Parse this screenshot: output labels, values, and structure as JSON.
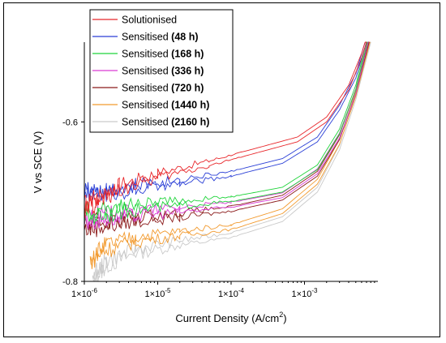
{
  "chart_data": {
    "type": "line",
    "xlabel": "Current Density (A/cm",
    "xlabel_sup": "2",
    "xlabel_end": ")",
    "ylabel": "V vs SCE (V)",
    "x_scale": "log",
    "xlim": [
      1e-06,
      0.01
    ],
    "ylim": [
      -0.8,
      -0.5
    ],
    "x_ticks": [
      {
        "value": 1e-06,
        "label": "1×10",
        "exp": "-6"
      },
      {
        "value": 1e-05,
        "label": "1×10",
        "exp": "-5"
      },
      {
        "value": 0.0001,
        "label": "1×10",
        "exp": "-4"
      },
      {
        "value": 0.001,
        "label": "1×10",
        "exp": "-3"
      }
    ],
    "y_ticks": [
      {
        "value": -0.6,
        "label": "-0.6"
      },
      {
        "value": -0.8,
        "label": "-0.8"
      }
    ],
    "grid": false,
    "legend_position": "top-left",
    "series": [
      {
        "name": "Solutionised",
        "bold": "",
        "color": "#e8262a",
        "x": [
          1e-06,
          1.5e-06,
          3e-06,
          1e-05,
          5e-05,
          0.0002,
          0.0008,
          0.002,
          0.004,
          0.006,
          0.007
        ],
        "y": [
          -0.71,
          -0.7,
          -0.685,
          -0.67,
          -0.655,
          -0.64,
          -0.625,
          -0.6,
          -0.56,
          -0.52,
          -0.5
        ]
      },
      {
        "name": "Sensitised ",
        "bold": "(48 h)",
        "color": "#2a3fd6",
        "x": [
          1e-06,
          2e-06,
          5e-06,
          2e-05,
          0.0001,
          0.0005,
          0.0015,
          0.003,
          0.005,
          0.007
        ],
        "y": [
          -0.69,
          -0.69,
          -0.685,
          -0.678,
          -0.668,
          -0.652,
          -0.625,
          -0.585,
          -0.545,
          -0.5
        ]
      },
      {
        "name": "Sensitised ",
        "bold": "(168 h)",
        "color": "#1fd43a",
        "x": [
          1e-06,
          2e-06,
          5e-06,
          2e-05,
          0.0001,
          0.0005,
          0.0015,
          0.003,
          0.005,
          0.0072
        ],
        "y": [
          -0.72,
          -0.715,
          -0.71,
          -0.705,
          -0.7,
          -0.688,
          -0.66,
          -0.615,
          -0.56,
          -0.5
        ]
      },
      {
        "name": "Sensitised ",
        "bold": "(336 h)",
        "color": "#d93ad4",
        "x": [
          1e-06,
          2e-06,
          5e-06,
          2e-05,
          0.0001,
          0.0005,
          0.0015,
          0.003,
          0.005,
          0.0074
        ],
        "y": [
          -0.725,
          -0.722,
          -0.718,
          -0.713,
          -0.707,
          -0.695,
          -0.665,
          -0.62,
          -0.565,
          -0.5
        ]
      },
      {
        "name": "Sensitised ",
        "bold": "(720 h)",
        "color": "#8b1a1a",
        "x": [
          1e-06,
          2e-06,
          5e-06,
          2e-05,
          0.0001,
          0.0005,
          0.0015,
          0.003,
          0.005,
          0.0076
        ],
        "y": [
          -0.735,
          -0.73,
          -0.725,
          -0.72,
          -0.712,
          -0.698,
          -0.668,
          -0.622,
          -0.565,
          -0.5
        ]
      },
      {
        "name": "Sensitised ",
        "bold": "(1440 h)",
        "color": "#f29a2e",
        "x": [
          1.2e-06,
          2e-06,
          5e-06,
          2e-05,
          0.0001,
          0.0005,
          0.0015,
          0.003,
          0.005,
          0.0078
        ],
        "y": [
          -0.775,
          -0.76,
          -0.75,
          -0.743,
          -0.735,
          -0.715,
          -0.678,
          -0.628,
          -0.568,
          -0.5
        ]
      },
      {
        "name": "Sensitised ",
        "bold": "(2160 h)",
        "color": "#c9c9c9",
        "x": [
          1.3e-06,
          2e-06,
          5e-06,
          2e-05,
          0.0001,
          0.0005,
          0.0015,
          0.003,
          0.005,
          0.008
        ],
        "y": [
          -0.8,
          -0.78,
          -0.765,
          -0.755,
          -0.745,
          -0.725,
          -0.688,
          -0.635,
          -0.572,
          -0.5
        ]
      }
    ]
  }
}
